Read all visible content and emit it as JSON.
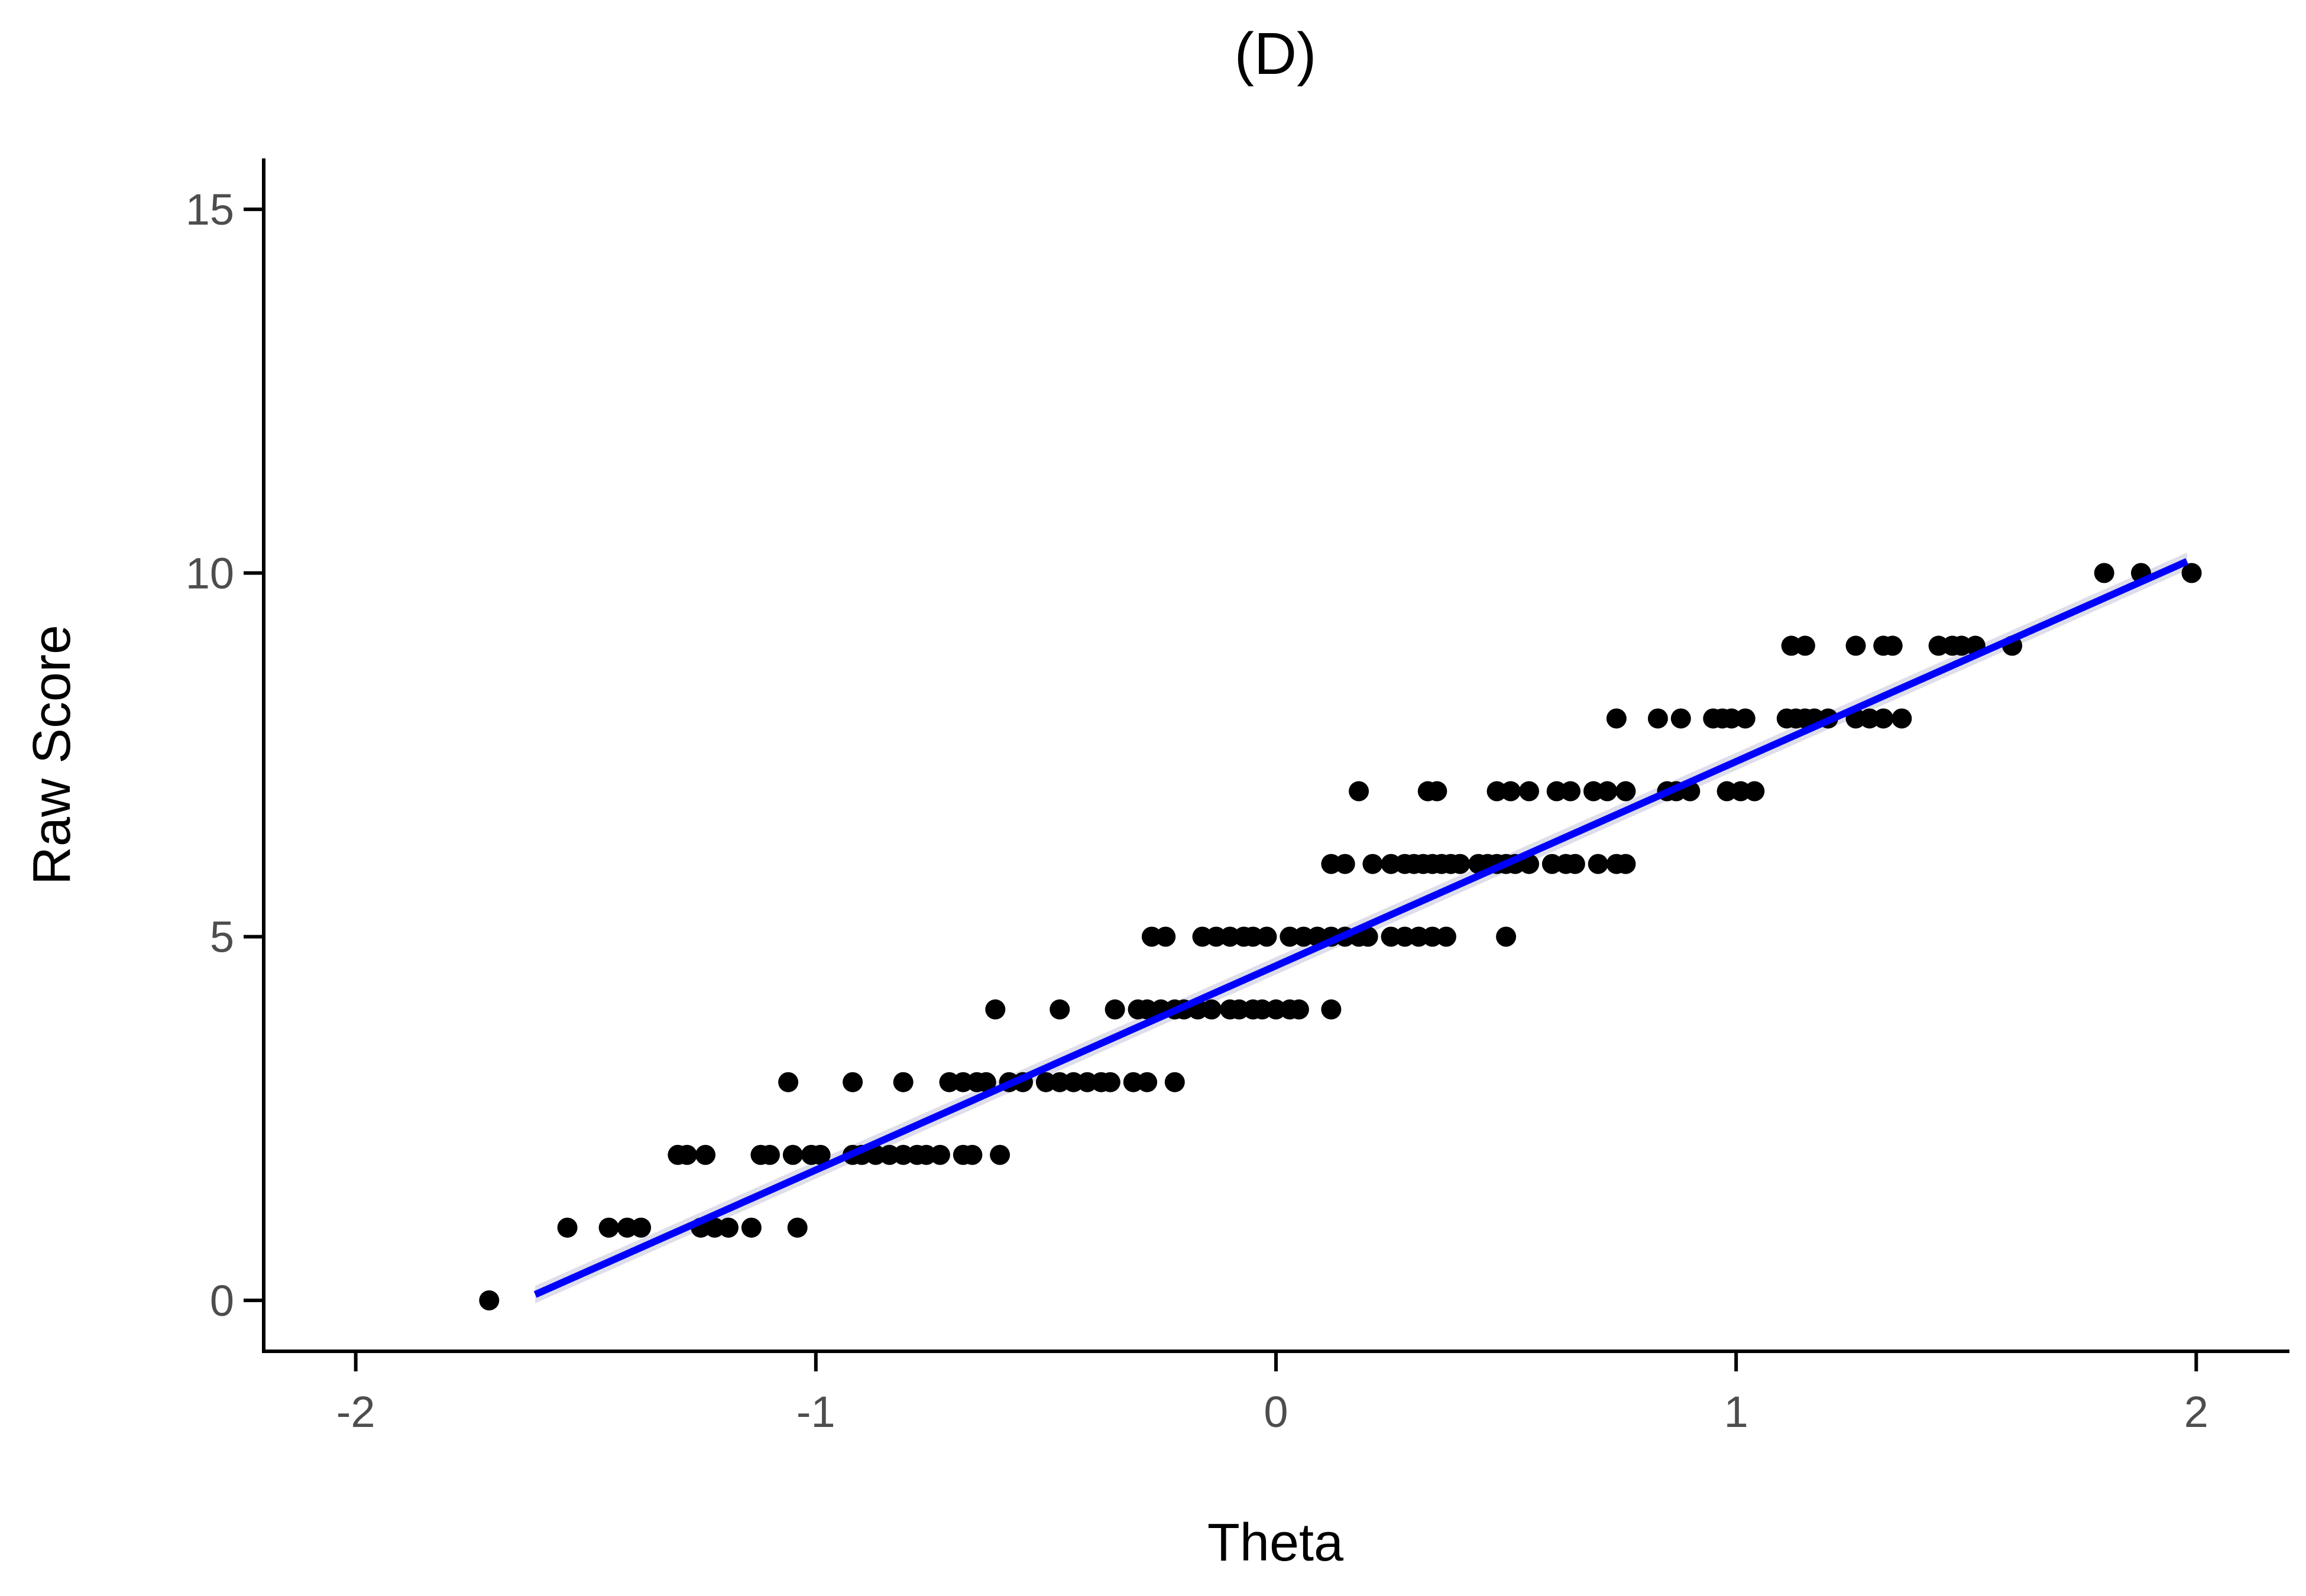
{
  "chart_data": {
    "type": "scatter",
    "title": "(D)",
    "xlabel": "Theta",
    "ylabel": "Raw Score",
    "xlim": [
      -2.2,
      2.2
    ],
    "ylim": [
      -0.7,
      15.7
    ],
    "x_ticks": [
      -2,
      -1,
      0,
      1,
      2
    ],
    "x_tick_labels": [
      "-2",
      "-1",
      "0",
      "1",
      "2"
    ],
    "y_ticks": [
      0,
      5,
      10,
      15
    ],
    "y_tick_labels": [
      "0",
      "5",
      "10",
      "15"
    ],
    "grid": false,
    "legend": "none",
    "point_color": "#000000",
    "fit_color": "#0000ff",
    "fit_band_color": "#c8c8dc",
    "points": [
      {
        "x": -1.71,
        "y": 0
      },
      {
        "x": -1.54,
        "y": 1
      },
      {
        "x": -1.45,
        "y": 1
      },
      {
        "x": -1.41,
        "y": 1
      },
      {
        "x": -1.38,
        "y": 1
      },
      {
        "x": -1.25,
        "y": 1
      },
      {
        "x": -1.22,
        "y": 1
      },
      {
        "x": -1.19,
        "y": 1
      },
      {
        "x": -1.14,
        "y": 1
      },
      {
        "x": -1.04,
        "y": 1
      },
      {
        "x": -1.3,
        "y": 2
      },
      {
        "x": -1.28,
        "y": 2
      },
      {
        "x": -1.24,
        "y": 2
      },
      {
        "x": -1.12,
        "y": 2
      },
      {
        "x": -1.1,
        "y": 2
      },
      {
        "x": -1.05,
        "y": 2
      },
      {
        "x": -1.01,
        "y": 2
      },
      {
        "x": -0.99,
        "y": 2
      },
      {
        "x": -0.92,
        "y": 2
      },
      {
        "x": -0.9,
        "y": 2
      },
      {
        "x": -0.87,
        "y": 2
      },
      {
        "x": -0.84,
        "y": 2
      },
      {
        "x": -0.81,
        "y": 2
      },
      {
        "x": -0.78,
        "y": 2
      },
      {
        "x": -0.76,
        "y": 2
      },
      {
        "x": -0.73,
        "y": 2
      },
      {
        "x": -0.68,
        "y": 2
      },
      {
        "x": -0.66,
        "y": 2
      },
      {
        "x": -0.6,
        "y": 2
      },
      {
        "x": -1.06,
        "y": 3
      },
      {
        "x": -0.92,
        "y": 3
      },
      {
        "x": -0.81,
        "y": 3
      },
      {
        "x": -0.71,
        "y": 3
      },
      {
        "x": -0.68,
        "y": 3
      },
      {
        "x": -0.65,
        "y": 3
      },
      {
        "x": -0.63,
        "y": 3
      },
      {
        "x": -0.58,
        "y": 3
      },
      {
        "x": -0.55,
        "y": 3
      },
      {
        "x": -0.5,
        "y": 3
      },
      {
        "x": -0.47,
        "y": 3
      },
      {
        "x": -0.44,
        "y": 3
      },
      {
        "x": -0.41,
        "y": 3
      },
      {
        "x": -0.38,
        "y": 3
      },
      {
        "x": -0.36,
        "y": 3
      },
      {
        "x": -0.31,
        "y": 3
      },
      {
        "x": -0.28,
        "y": 3
      },
      {
        "x": -0.22,
        "y": 3
      },
      {
        "x": -0.61,
        "y": 4
      },
      {
        "x": -0.47,
        "y": 4
      },
      {
        "x": -0.35,
        "y": 4
      },
      {
        "x": -0.3,
        "y": 4
      },
      {
        "x": -0.28,
        "y": 4
      },
      {
        "x": -0.25,
        "y": 4
      },
      {
        "x": -0.22,
        "y": 4
      },
      {
        "x": -0.2,
        "y": 4
      },
      {
        "x": -0.17,
        "y": 4
      },
      {
        "x": -0.14,
        "y": 4
      },
      {
        "x": -0.1,
        "y": 4
      },
      {
        "x": -0.08,
        "y": 4
      },
      {
        "x": -0.05,
        "y": 4
      },
      {
        "x": -0.03,
        "y": 4
      },
      {
        "x": 0.0,
        "y": 4
      },
      {
        "x": 0.03,
        "y": 4
      },
      {
        "x": 0.05,
        "y": 4
      },
      {
        "x": 0.12,
        "y": 4
      },
      {
        "x": -0.27,
        "y": 5
      },
      {
        "x": -0.24,
        "y": 5
      },
      {
        "x": -0.16,
        "y": 5
      },
      {
        "x": -0.13,
        "y": 5
      },
      {
        "x": -0.1,
        "y": 5
      },
      {
        "x": -0.07,
        "y": 5
      },
      {
        "x": -0.05,
        "y": 5
      },
      {
        "x": -0.02,
        "y": 5
      },
      {
        "x": 0.03,
        "y": 5
      },
      {
        "x": 0.06,
        "y": 5
      },
      {
        "x": 0.09,
        "y": 5
      },
      {
        "x": 0.12,
        "y": 5
      },
      {
        "x": 0.15,
        "y": 5
      },
      {
        "x": 0.18,
        "y": 5
      },
      {
        "x": 0.2,
        "y": 5
      },
      {
        "x": 0.25,
        "y": 5
      },
      {
        "x": 0.28,
        "y": 5
      },
      {
        "x": 0.31,
        "y": 5
      },
      {
        "x": 0.34,
        "y": 5
      },
      {
        "x": 0.37,
        "y": 5
      },
      {
        "x": 0.5,
        "y": 5
      },
      {
        "x": 0.12,
        "y": 6
      },
      {
        "x": 0.15,
        "y": 6
      },
      {
        "x": 0.21,
        "y": 6
      },
      {
        "x": 0.25,
        "y": 6
      },
      {
        "x": 0.28,
        "y": 6
      },
      {
        "x": 0.3,
        "y": 6
      },
      {
        "x": 0.32,
        "y": 6
      },
      {
        "x": 0.34,
        "y": 6
      },
      {
        "x": 0.36,
        "y": 6
      },
      {
        "x": 0.38,
        "y": 6
      },
      {
        "x": 0.4,
        "y": 6
      },
      {
        "x": 0.44,
        "y": 6
      },
      {
        "x": 0.46,
        "y": 6
      },
      {
        "x": 0.48,
        "y": 6
      },
      {
        "x": 0.5,
        "y": 6
      },
      {
        "x": 0.52,
        "y": 6
      },
      {
        "x": 0.55,
        "y": 6
      },
      {
        "x": 0.6,
        "y": 6
      },
      {
        "x": 0.63,
        "y": 6
      },
      {
        "x": 0.65,
        "y": 6
      },
      {
        "x": 0.7,
        "y": 6
      },
      {
        "x": 0.74,
        "y": 6
      },
      {
        "x": 0.76,
        "y": 6
      },
      {
        "x": 0.18,
        "y": 7
      },
      {
        "x": 0.33,
        "y": 7
      },
      {
        "x": 0.35,
        "y": 7
      },
      {
        "x": 0.48,
        "y": 7
      },
      {
        "x": 0.51,
        "y": 7
      },
      {
        "x": 0.55,
        "y": 7
      },
      {
        "x": 0.61,
        "y": 7
      },
      {
        "x": 0.64,
        "y": 7
      },
      {
        "x": 0.69,
        "y": 7
      },
      {
        "x": 0.72,
        "y": 7
      },
      {
        "x": 0.76,
        "y": 7
      },
      {
        "x": 0.85,
        "y": 7
      },
      {
        "x": 0.87,
        "y": 7
      },
      {
        "x": 0.9,
        "y": 7
      },
      {
        "x": 0.98,
        "y": 7
      },
      {
        "x": 1.01,
        "y": 7
      },
      {
        "x": 1.04,
        "y": 7
      },
      {
        "x": 0.74,
        "y": 8
      },
      {
        "x": 0.83,
        "y": 8
      },
      {
        "x": 0.88,
        "y": 8
      },
      {
        "x": 0.95,
        "y": 8
      },
      {
        "x": 0.97,
        "y": 8
      },
      {
        "x": 0.99,
        "y": 8
      },
      {
        "x": 1.02,
        "y": 8
      },
      {
        "x": 1.11,
        "y": 8
      },
      {
        "x": 1.13,
        "y": 8
      },
      {
        "x": 1.15,
        "y": 8
      },
      {
        "x": 1.17,
        "y": 8
      },
      {
        "x": 1.2,
        "y": 8
      },
      {
        "x": 1.26,
        "y": 8
      },
      {
        "x": 1.29,
        "y": 8
      },
      {
        "x": 1.32,
        "y": 8
      },
      {
        "x": 1.36,
        "y": 8
      },
      {
        "x": 1.12,
        "y": 9
      },
      {
        "x": 1.15,
        "y": 9
      },
      {
        "x": 1.26,
        "y": 9
      },
      {
        "x": 1.32,
        "y": 9
      },
      {
        "x": 1.34,
        "y": 9
      },
      {
        "x": 1.44,
        "y": 9
      },
      {
        "x": 1.47,
        "y": 9
      },
      {
        "x": 1.49,
        "y": 9
      },
      {
        "x": 1.52,
        "y": 9
      },
      {
        "x": 1.6,
        "y": 9
      },
      {
        "x": 1.8,
        "y": 10
      },
      {
        "x": 1.88,
        "y": 10
      },
      {
        "x": 1.99,
        "y": 10
      }
    ],
    "fit_line": {
      "x": [
        -1.61,
        1.98
      ],
      "y": [
        0.08,
        10.16
      ]
    }
  }
}
